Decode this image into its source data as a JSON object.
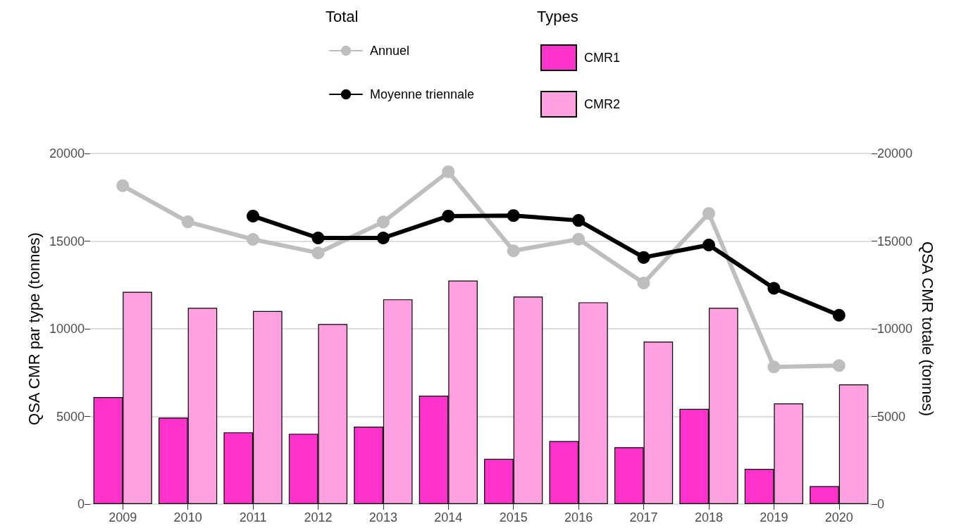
{
  "chart_data": {
    "type": "bar",
    "categories": [
      "2009",
      "2010",
      "2011",
      "2012",
      "2013",
      "2014",
      "2015",
      "2016",
      "2017",
      "2018",
      "2019",
      "2020"
    ],
    "series": [
      {
        "name": "Annuel",
        "type": "line",
        "axis": "y2",
        "color": "#bebebe",
        "values": [
          18160,
          16100,
          15100,
          14330,
          16090,
          18960,
          14450,
          15110,
          12610,
          16580,
          7820,
          7900
        ]
      },
      {
        "name": "Moyenne triennale",
        "type": "line",
        "axis": "y2",
        "color": "#000000",
        "values": [
          null,
          null,
          16430,
          15180,
          15180,
          16430,
          16460,
          16180,
          14070,
          14780,
          12310,
          10770
        ]
      },
      {
        "name": "CMR1",
        "color": "#ff33cc",
        "values": [
          6100,
          4930,
          4090,
          4010,
          4420,
          6180,
          2580,
          3590,
          3240,
          5430,
          2010,
          1020
        ]
      },
      {
        "name": "CMR2",
        "color": "#ffa0e0",
        "values": [
          12110,
          11190,
          11010,
          10270,
          11680,
          12750,
          11840,
          11510,
          9270,
          11190,
          5740,
          6830
        ]
      }
    ],
    "ylabel": "QSA CMR par type (tonnes)",
    "y2label": "QSA CMR totale (tonnes)",
    "legend_title": [
      "Total",
      "Types"
    ],
    "ylim": [
      0,
      20000
    ],
    "yticks": [
      0,
      5000,
      10000,
      15000,
      20000
    ],
    "y2lim": [
      0,
      20000
    ],
    "y2ticks": [
      0,
      5000,
      10000,
      15000,
      20000
    ],
    "grid": "y",
    "legend": "top",
    "marker": "circle",
    "line_style": "solid"
  }
}
